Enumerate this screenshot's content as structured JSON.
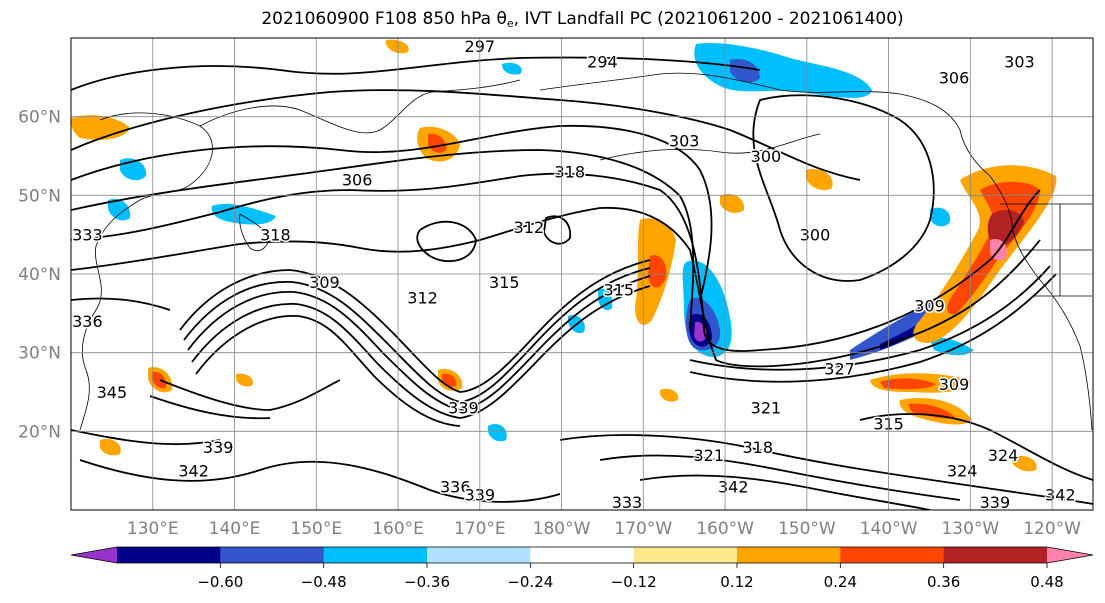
{
  "title": {
    "prefix": "2021060900 F108 850 hPa θ",
    "sub": "e",
    "suffix": ", IVT Landfall PC (2021061200 - 2021061400)"
  },
  "map": {
    "lat_labels": [
      "60°N",
      "50°N",
      "40°N",
      "30°N",
      "20°N"
    ],
    "lat_values": [
      60,
      50,
      40,
      30,
      20
    ],
    "lon_labels": [
      "130°E",
      "140°E",
      "150°E",
      "160°E",
      "170°E",
      "180°W",
      "170°W",
      "160°W",
      "150°W",
      "140°W",
      "130°W",
      "120°W"
    ],
    "lon_values": [
      130,
      140,
      150,
      160,
      170,
      180,
      190,
      200,
      210,
      220,
      230,
      240
    ],
    "extent": {
      "lon_min": 120,
      "lon_max": 245,
      "lat_min": 10,
      "lat_max": 70
    },
    "grid": true,
    "contour_labels": [
      {
        "text": "297",
        "lon": 170,
        "lat": 69
      },
      {
        "text": "294",
        "lon": 185,
        "lat": 67
      },
      {
        "text": "306",
        "lon": 228,
        "lat": 65
      },
      {
        "text": "303",
        "lon": 236,
        "lat": 67
      },
      {
        "text": "303",
        "lon": 195,
        "lat": 57
      },
      {
        "text": "300",
        "lon": 205,
        "lat": 55
      },
      {
        "text": "318",
        "lon": 181,
        "lat": 53
      },
      {
        "text": "306",
        "lon": 155,
        "lat": 52
      },
      {
        "text": "312",
        "lon": 176,
        "lat": 46
      },
      {
        "text": "315",
        "lon": 173,
        "lat": 39
      },
      {
        "text": "312",
        "lon": 163,
        "lat": 37
      },
      {
        "text": "309",
        "lon": 151,
        "lat": 39
      },
      {
        "text": "318",
        "lon": 145,
        "lat": 45
      },
      {
        "text": "300",
        "lon": 211,
        "lat": 45
      },
      {
        "text": "309",
        "lon": 225,
        "lat": 36
      },
      {
        "text": "315",
        "lon": 187,
        "lat": 38
      },
      {
        "text": "327",
        "lon": 214,
        "lat": 28
      },
      {
        "text": "321",
        "lon": 205,
        "lat": 23
      },
      {
        "text": "309",
        "lon": 228,
        "lat": 26
      },
      {
        "text": "339",
        "lon": 168,
        "lat": 23
      },
      {
        "text": "345",
        "lon": 125,
        "lat": 25
      },
      {
        "text": "339",
        "lon": 138,
        "lat": 18
      },
      {
        "text": "342",
        "lon": 135,
        "lat": 15
      },
      {
        "text": "336",
        "lon": 167,
        "lat": 13
      },
      {
        "text": "339",
        "lon": 170,
        "lat": 12
      },
      {
        "text": "321",
        "lon": 198,
        "lat": 17
      },
      {
        "text": "318",
        "lon": 204,
        "lat": 18
      },
      {
        "text": "342",
        "lon": 201,
        "lat": 13
      },
      {
        "text": "333",
        "lon": 188,
        "lat": 11
      },
      {
        "text": "315",
        "lon": 220,
        "lat": 21
      },
      {
        "text": "324",
        "lon": 229,
        "lat": 15
      },
      {
        "text": "324",
        "lon": 234,
        "lat": 17
      },
      {
        "text": "339",
        "lon": 233,
        "lat": 11
      },
      {
        "text": "342",
        "lon": 241,
        "lat": 12
      },
      {
        "text": "333",
        "lon": 122,
        "lat": 45
      },
      {
        "text": "336",
        "lon": 122,
        "lat": 34
      }
    ],
    "shading_note": "IVT landfall PC filled contours",
    "colors": {
      "neg_strong": "#9932cc",
      "neg_060": "#00008b",
      "neg_048": "#3355cc",
      "neg_036": "#00bfff",
      "neg_024": "#b0e2ff",
      "neutral": "#ffffff",
      "pos_012": "#ffe98a",
      "pos_024": "#ffa500",
      "pos_036": "#ff4500",
      "pos_048": "#b22222",
      "pos_strong": "#ff82ab"
    }
  },
  "colorbar": {
    "tick_labels": [
      "−0.60",
      "−0.48",
      "−0.36",
      "−0.24",
      "−0.12",
      "0.12",
      "0.24",
      "0.36",
      "0.48",
      "0.60"
    ],
    "bins": [
      "#9932cc",
      "#00008b",
      "#3355cc",
      "#00bfff",
      "#b0e2ff",
      "#ffffff",
      "#ffe98a",
      "#ffa500",
      "#ff4500",
      "#b22222",
      "#ff82ab"
    ]
  }
}
